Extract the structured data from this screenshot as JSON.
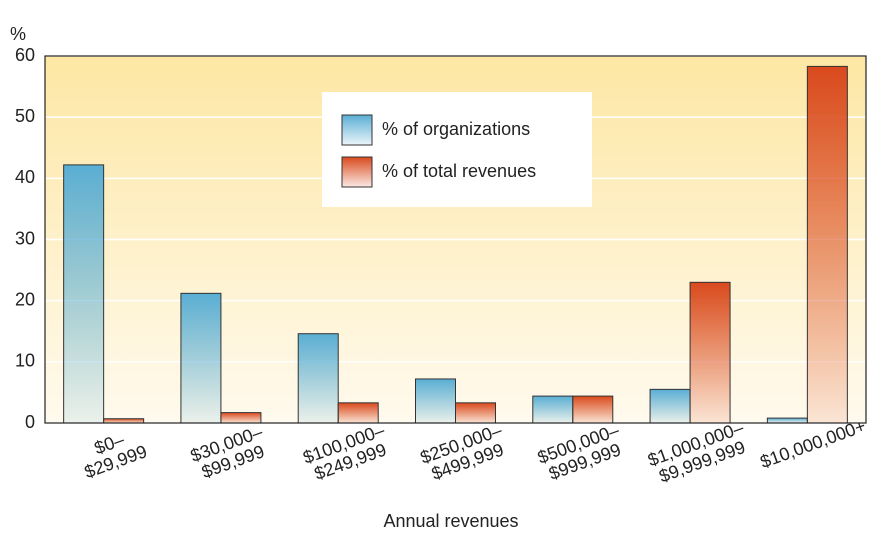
{
  "chart_data": {
    "type": "bar",
    "y_label": "%",
    "x_label": "Annual revenues",
    "categories": [
      [
        "$0–",
        "$29,999"
      ],
      [
        "$30,000–",
        "$99,999"
      ],
      [
        "$100,000–",
        "$249,999"
      ],
      [
        "$250,000–",
        "$499,999"
      ],
      [
        "$500,000–",
        "$999,999"
      ],
      [
        "$1,000,000–",
        "$9,999,999"
      ],
      [
        "$10,000,000+"
      ]
    ],
    "series": [
      {
        "name": "% of organizations",
        "color": "#5aaed4",
        "values": [
          42.2,
          21.2,
          14.6,
          7.2,
          4.4,
          5.5,
          0.8
        ]
      },
      {
        "name": "% of total revenues",
        "color": "#d94a1e",
        "values": [
          0.7,
          1.7,
          3.3,
          3.3,
          4.4,
          23,
          58.3
        ]
      }
    ],
    "ylim": [
      0,
      60
    ],
    "yticks": [
      0,
      10,
      20,
      30,
      40,
      50,
      60
    ],
    "grid": true,
    "legend": "top"
  }
}
